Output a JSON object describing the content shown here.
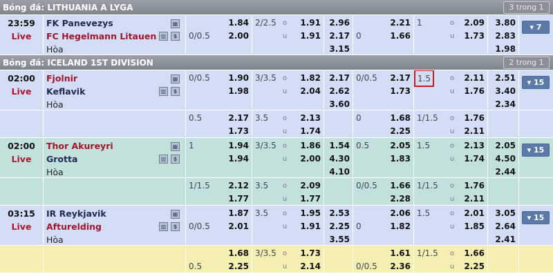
{
  "colors": {
    "header": "#8a9096",
    "row_blue": "#d3ddf6",
    "row_green": "#c2e1dc",
    "row_yellow": "#f6efb2",
    "live": "#b0182a",
    "highlight": "#d0141c",
    "button": "#5b7aa8"
  },
  "icons": [
    "livecast-icon",
    "stats-chart-icon",
    "odds-history-icon"
  ],
  "leagues": [
    {
      "title": "Bóng đá: LITHUANIA A LYGA",
      "count": "3 trong 1",
      "rows": [
        {
          "type": "main",
          "bg": "blue",
          "time": "23:59",
          "status": "Live",
          "home": "FK Panevezys",
          "away": "FC Hegelmann Litauen",
          "fav": "away",
          "draw": "Hòa",
          "cells": [
            [
              "",
              "0/0.5",
              ""
            ],
            [
              "1.84",
              "2.00"
            ],
            [
              "2/2.5"
            ],
            [
              "o",
              "u"
            ],
            [
              "1.91",
              "1.91"
            ],
            [
              "2.96",
              "2.17",
              "3.15"
            ],
            [
              "",
              "0"
            ],
            [
              "2.21",
              "1.66"
            ],
            [
              "1"
            ],
            [
              "o",
              "u"
            ],
            [
              "2.09",
              "1.73"
            ],
            [
              "3.80",
              "2.83",
              "1.98"
            ]
          ],
          "more": "▾ 7"
        }
      ]
    },
    {
      "title": "Bóng đá: ICELAND 1ST DIVISION",
      "count": "2 trong 1",
      "rows": [
        {
          "type": "main",
          "bg": "blue",
          "time": "02:00",
          "status": "Live",
          "home": "Fjolnir",
          "away": "Keflavik",
          "fav": "home",
          "draw": "Hòa",
          "cells": [
            [
              "0/0.5"
            ],
            [
              "1.90",
              "1.98"
            ],
            [
              "3/3.5"
            ],
            [
              "o",
              "u"
            ],
            [
              "1.82",
              "2.04"
            ],
            [
              "2.17",
              "2.62",
              "3.60"
            ],
            [
              "0/0.5"
            ],
            [
              "2.17",
              "1.73"
            ],
            [
              "1.5"
            ],
            [
              "o",
              "u"
            ],
            [
              "2.11",
              "1.76"
            ],
            [
              "2.51",
              "3.40",
              "2.34"
            ]
          ],
          "more": "▾ 15",
          "highlight_cell": 8
        },
        {
          "type": "sub",
          "bg": "blue",
          "cells": [
            [
              "0.5"
            ],
            [
              "2.17",
              "1.73"
            ],
            [
              "3.5"
            ],
            [
              "o",
              "u"
            ],
            [
              "2.13",
              "1.74"
            ],
            [],
            [
              "0"
            ],
            [
              "1.68",
              "2.25"
            ],
            [
              "1/1.5"
            ],
            [
              "o",
              "u"
            ],
            [
              "1.76",
              "2.11"
            ],
            []
          ]
        },
        {
          "type": "main",
          "bg": "green",
          "time": "02:00",
          "status": "Live",
          "home": "Thor Akureyri",
          "away": "Grotta",
          "fav": "home",
          "draw": "Hòa",
          "cells": [
            [
              "1"
            ],
            [
              "1.94",
              "1.94"
            ],
            [
              "3/3.5"
            ],
            [
              "o",
              "u"
            ],
            [
              "1.86",
              "2.00"
            ],
            [
              "1.54",
              "4.30",
              "4.10"
            ],
            [
              "0.5"
            ],
            [
              "2.05",
              "1.83"
            ],
            [
              "1.5"
            ],
            [
              "o",
              "u"
            ],
            [
              "2.13",
              "1.74"
            ],
            [
              "2.05",
              "4.50",
              "2.44"
            ]
          ],
          "more": "▾ 15"
        },
        {
          "type": "sub",
          "bg": "green",
          "cells": [
            [
              "1/1.5"
            ],
            [
              "2.12",
              "1.77"
            ],
            [
              "3.5"
            ],
            [
              "o",
              "u"
            ],
            [
              "2.09",
              "1.77"
            ],
            [],
            [
              "0/0.5"
            ],
            [
              "1.66",
              "2.28"
            ],
            [
              "1/1.5"
            ],
            [
              "o",
              "u"
            ],
            [
              "1.76",
              "2.11"
            ],
            []
          ]
        },
        {
          "type": "main",
          "bg": "blue",
          "time": "03:15",
          "status": "Live",
          "home": "IR Reykjavik",
          "away": "Afturelding",
          "fav": "away",
          "draw": "Hòa",
          "cells": [
            [
              "",
              "0/0.5"
            ],
            [
              "1.87",
              "2.01"
            ],
            [
              "3.5"
            ],
            [
              "o",
              "u"
            ],
            [
              "1.95",
              "1.91"
            ],
            [
              "2.53",
              "2.25",
              "3.55"
            ],
            [
              "",
              "0"
            ],
            [
              "2.06",
              "1.82"
            ],
            [
              "1.5"
            ],
            [
              "o",
              "u"
            ],
            [
              "2.01",
              "1.85"
            ],
            [
              "3.05",
              "2.64",
              "2.41"
            ]
          ],
          "more": "▾ 15"
        },
        {
          "type": "sub",
          "bg": "yellow",
          "cells": [
            [
              "",
              "0.5"
            ],
            [
              "1.68",
              "2.25"
            ],
            [
              "3/3.5"
            ],
            [
              "o",
              "u"
            ],
            [
              "1.73",
              "2.14"
            ],
            [],
            [
              "",
              "0/0.5"
            ],
            [
              "1.61",
              "2.36"
            ],
            [
              "1/1.5"
            ],
            [
              "o",
              "u"
            ],
            [
              "1.66",
              "2.25"
            ],
            []
          ]
        }
      ]
    }
  ]
}
